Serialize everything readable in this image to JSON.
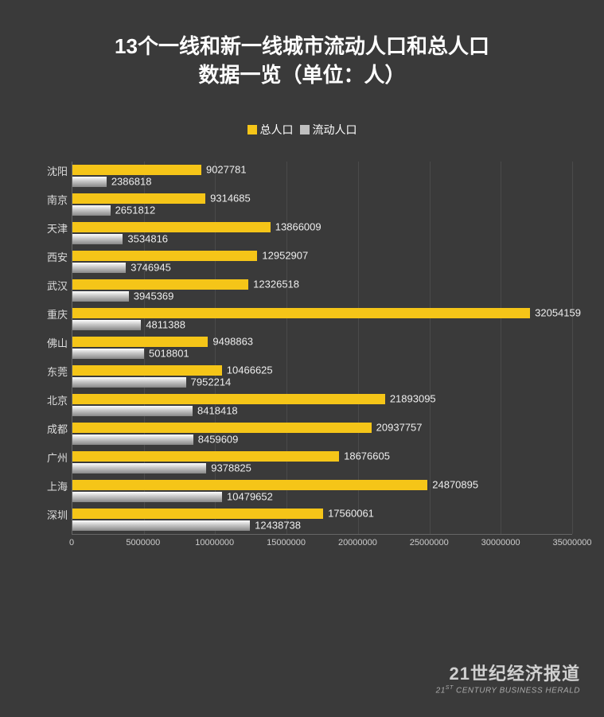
{
  "title": "13个一线和新一线城市流动人口和总人口\n数据一览（单位：人）",
  "title_fontsize": 26,
  "background_color": "#3a3a3a",
  "legend": {
    "items": [
      {
        "label": "总人口",
        "color": "#f5c518"
      },
      {
        "label": "流动人口",
        "color": "#bfbfbf"
      }
    ],
    "fontsize": 14
  },
  "chart": {
    "type": "bar",
    "orientation": "horizontal",
    "grouped": true,
    "xlim": [
      0,
      35000000
    ],
    "xtick_step": 5000000,
    "xticks": [
      "0",
      "5000000",
      "10000000",
      "15000000",
      "20000000",
      "25000000",
      "30000000",
      "35000000"
    ],
    "label_fontsize": 13,
    "tick_fontsize": 11,
    "bar_label_fontsize": 13,
    "grid_color": "#4a4a4a",
    "series_colors": {
      "total": "#f5c518",
      "floating_gradient": [
        "#ffffff",
        "#cccccc",
        "#888888"
      ]
    },
    "categories": [
      "沈阳",
      "南京",
      "天津",
      "西安",
      "武汉",
      "重庆",
      "佛山",
      "东莞",
      "北京",
      "成都",
      "广州",
      "上海",
      "深圳"
    ],
    "data": [
      {
        "city": "沈阳",
        "total": 9027781,
        "floating": 2386818
      },
      {
        "city": "南京",
        "total": 9314685,
        "floating": 2651812
      },
      {
        "city": "天津",
        "total": 13866009,
        "floating": 3534816
      },
      {
        "city": "西安",
        "total": 12952907,
        "floating": 3746945
      },
      {
        "city": "武汉",
        "total": 12326518,
        "floating": 3945369
      },
      {
        "city": "重庆",
        "total": 32054159,
        "floating": 4811388
      },
      {
        "city": "佛山",
        "total": 9498863,
        "floating": 5018801
      },
      {
        "city": "东莞",
        "total": 10466625,
        "floating": 7952214
      },
      {
        "city": "北京",
        "total": 21893095,
        "floating": 8418418
      },
      {
        "city": "成都",
        "total": 20937757,
        "floating": 8459609
      },
      {
        "city": "广州",
        "total": 18676605,
        "floating": 9378825
      },
      {
        "city": "上海",
        "total": 24870895,
        "floating": 10479652
      },
      {
        "city": "深圳",
        "total": 17560061,
        "floating": 12438738
      }
    ]
  },
  "footer": {
    "cn": "21世纪经济报道",
    "en_prefix": "21",
    "en_sup": "ST",
    "en_rest": " CENTURY BUSINESS HERALD",
    "cn_fontsize": 22,
    "en_fontsize": 10
  }
}
